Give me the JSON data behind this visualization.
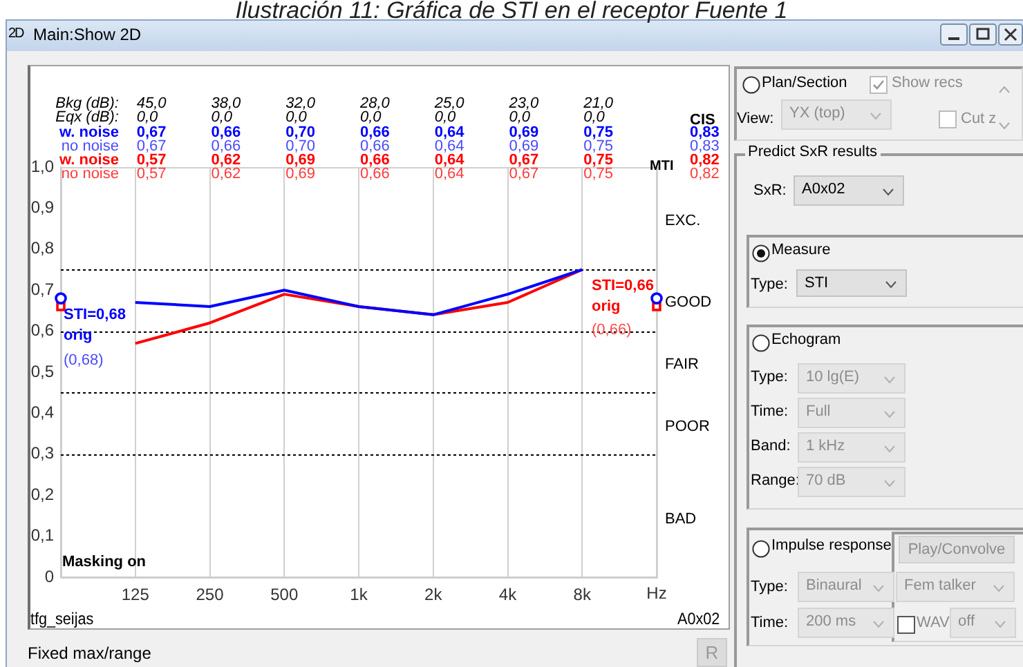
{
  "chart_data": {
    "type": "line",
    "title": "Ilustración 11: Gráfica de STI en el receptor Fuente 1",
    "xlabel": "Hz",
    "categories": [
      null,
      "125",
      "250",
      "500",
      "1k",
      "2k",
      "4k",
      "8k",
      null
    ],
    "series": [
      {
        "name": "w. noise",
        "color": "#0000ff",
        "values": [
          null,
          0.67,
          0.66,
          0.7,
          0.66,
          0.64,
          0.69,
          0.75,
          null
        ]
      },
      {
        "name": "w. noise",
        "color": "#ff0000",
        "values": [
          null,
          0.57,
          0.62,
          0.69,
          0.66,
          0.64,
          0.67,
          0.75,
          null
        ]
      },
      {
        "type": "scatter",
        "marker": "circle",
        "color": "#0000ff",
        "values": [
          0.68,
          null,
          null,
          null,
          null,
          null,
          null,
          null,
          0.68
        ]
      },
      {
        "type": "scatter",
        "marker": "square",
        "color": "#ff0000",
        "values": [
          0.66,
          null,
          null,
          null,
          null,
          null,
          null,
          null,
          0.66
        ]
      }
    ],
    "ylim": [
      0,
      1
    ],
    "yticks": [
      0,
      {
        "value": 0.1,
        "label": "0,1"
      },
      {
        "value": 0.2,
        "label": "0,2"
      },
      {
        "value": 0.3,
        "label": "0,3"
      },
      {
        "value": 0.4,
        "label": "0,4"
      },
      {
        "value": 0.5,
        "label": "0,5"
      },
      {
        "value": 0.6,
        "label": "0,6"
      },
      {
        "value": 0.7,
        "label": "0,7"
      },
      {
        "value": 0.8,
        "label": "0,8"
      },
      {
        "value": 0.9,
        "label": "0,9"
      },
      {
        "value": 1,
        "label": "1,0"
      }
    ],
    "grid": "x",
    "legend": false,
    "ref_lines": [
      {
        "axis": "y",
        "value": 0.75,
        "color": "#000000",
        "line_style": "dotted"
      },
      {
        "axis": "y",
        "value": 0.6,
        "color": "#000000",
        "line_style": "dotted"
      },
      {
        "axis": "y",
        "value": 0.45,
        "color": "#000000",
        "line_style": "dotted"
      },
      {
        "axis": "y",
        "value": 0.3,
        "color": "#000000",
        "line_style": "dotted"
      }
    ],
    "annotations": [
      "Bkg (dB):",
      "45,0",
      "38,0",
      "32,0",
      "28,0",
      "25,0",
      "23,0",
      "21,0",
      "Eqx (dB):",
      "0,0",
      "0,0",
      "0,0",
      "0,0",
      "0,0",
      "0,0",
      "0,0",
      "no noise",
      "0,67",
      "0,66",
      "0,70",
      "0,66",
      "0,64",
      "0,69",
      "0,75",
      "no noise",
      "0,57",
      "0,62",
      "0,69",
      "0,66",
      "0,64",
      "0,67",
      "0,75",
      "CIS",
      "0,83",
      "0,83",
      "0,82",
      "0,82",
      "MTI",
      "STI=0,68",
      "orig",
      "(0,68)",
      "STI=0,66",
      "orig",
      "(0,66)",
      "Masking on",
      "tfg_seijas",
      "A0x02",
      "Fixed max/range",
      "R",
      "Main:Show 2D",
      "2D",
      "Plan/Section",
      "Show recs",
      "View:",
      "YX (top)",
      "Cut z",
      "Predict SxR results",
      "SxR:",
      "A0x02",
      "Measure",
      "Type:",
      "STI",
      "Echogram",
      "Type:",
      "10 lg(E)",
      "Time:",
      "Full",
      "Band:",
      "1 kHz",
      "Range:",
      "70 dB",
      "Impulse response",
      "Play/Convolve",
      "Type:",
      "Binaural",
      "Fem talker",
      "Time:",
      "200 ms",
      "WAV",
      "off",
      "EXC.",
      "GOOD",
      "FAIR",
      "POOR",
      "BAD",
      "0,67",
      "0,66",
      "0,70",
      "0,66",
      "0,64",
      "0,69",
      "0,75",
      "0,57",
      "0,62",
      "0,69",
      "0,66",
      "0,64",
      "0,67",
      "0,75"
    ]
  }
}
